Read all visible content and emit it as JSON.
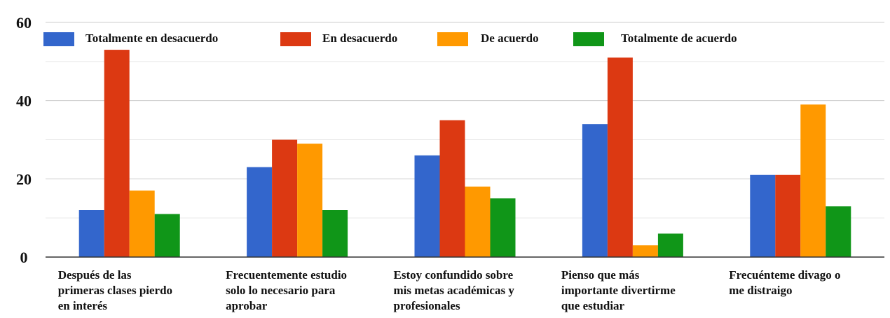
{
  "chart_data": {
    "type": "bar",
    "title": "",
    "xlabel": "",
    "ylabel": "",
    "ylim": [
      0,
      60
    ],
    "yticks": [
      "0",
      "20",
      "40",
      "60"
    ],
    "grid": true,
    "legend_position": "top",
    "categories": [
      [
        "Después de las",
        "primeras clases pierdo",
        "en interés"
      ],
      [
        "Frecuentemente estudio",
        "solo lo necesario para",
        "aprobar"
      ],
      [
        "Estoy confundido sobre",
        "mis metas académicas y",
        "profesionales"
      ],
      [
        "Pienso que más",
        "importante divertirme",
        "que estudiar"
      ],
      [
        "Frecuénteme divago o",
        "me distraigo"
      ]
    ],
    "series": [
      {
        "name": "Totalmente en desacuerdo",
        "color": "#3366cc",
        "values": [
          12,
          23,
          26,
          34,
          21
        ]
      },
      {
        "name": "En desacuerdo",
        "color": "#dc3912",
        "values": [
          53,
          30,
          35,
          51,
          21
        ]
      },
      {
        "name": "De acuerdo",
        "color": "#ff9900",
        "values": [
          17,
          29,
          18,
          3,
          39
        ]
      },
      {
        "name": "Totalmente de acuerdo",
        "color": "#109618",
        "values": [
          11,
          12,
          15,
          6,
          13
        ]
      }
    ]
  }
}
